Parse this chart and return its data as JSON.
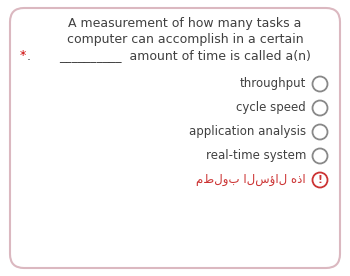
{
  "bg_color": "#ffffff",
  "border_color": "#dbb8c0",
  "question_line1": "A measurement of how many tasks a",
  "question_line2": "computer can accomplish in a certain",
  "question_line3_star": "*",
  "question_line3_dot": ".",
  "question_line3_underline": "__________",
  "question_line3_end": "amount of time is called a(n)",
  "options": [
    "throughput",
    "cycle speed",
    "application analysis",
    "real-time system"
  ],
  "arabic_text": "هذا السؤال مطلوب",
  "star_color": "#cc0000",
  "arabic_color": "#cc3333",
  "text_color": "#404040",
  "circle_edge_color": "#888888",
  "exclamation_color": "#cc3333",
  "option_font_size": 8.5,
  "question_font_size": 9.0,
  "arabic_font_size": 8.5
}
